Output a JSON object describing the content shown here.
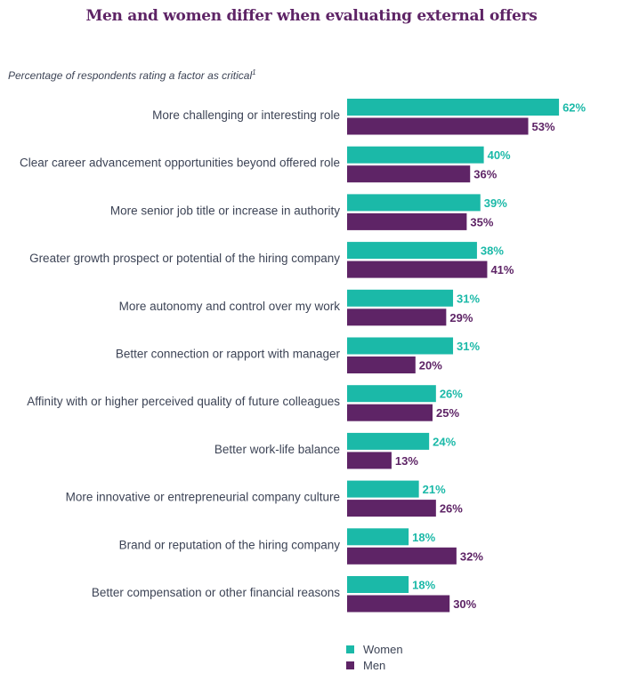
{
  "chart_data": {
    "type": "bar",
    "orientation": "horizontal",
    "title": "Men and women differ when evaluating external offers",
    "subtitle": "Percentage of respondents rating a factor as critical",
    "footnote_marker": "1",
    "categories": [
      "More challenging or interesting role",
      "Clear career advancement opportunities beyond offered role",
      "More senior job title or increase in authority",
      "Greater growth prospect or potential of the hiring company",
      "More autonomy and control over my work",
      "Better connection or rapport with manager",
      "Affinity with or higher perceived quality of future colleagues",
      "Better work-life balance",
      "More innovative or entrepreneurial company culture",
      "Brand or reputation of the hiring company",
      "Better compensation or other financial reasons"
    ],
    "series": [
      {
        "name": "Women",
        "color": "#1bb9a8",
        "values": [
          62,
          40,
          39,
          38,
          31,
          31,
          26,
          24,
          21,
          18,
          18
        ]
      },
      {
        "name": "Men",
        "color": "#5e2466",
        "values": [
          53,
          36,
          35,
          41,
          29,
          20,
          25,
          13,
          26,
          32,
          30
        ]
      }
    ],
    "value_suffix": "%",
    "xlim": [
      0,
      70
    ],
    "grid": false,
    "legend_position": "bottom-center"
  }
}
